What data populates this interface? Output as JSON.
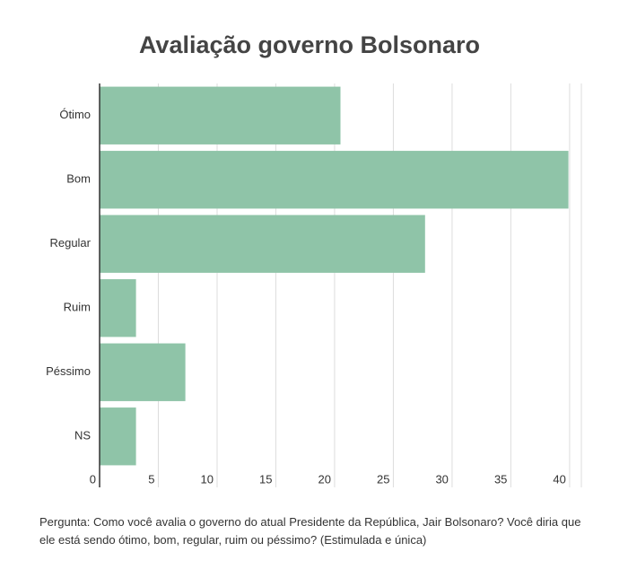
{
  "chart_data": {
    "type": "barh",
    "title": "Avaliação governo Bolsonaro",
    "categories": [
      "Ótimo",
      "Bom",
      "Regular",
      "Ruim",
      "Péssimo",
      "NS"
    ],
    "values": [
      20.5,
      39.9,
      27.7,
      3.1,
      7.3,
      3.1
    ],
    "color": "#8fc4a8",
    "xlim": [
      0,
      41
    ],
    "xticks": [
      0,
      5,
      10,
      15,
      20,
      25,
      30,
      35,
      40
    ],
    "grid": true,
    "note": "Pergunta: Como você avalia o governo do atual Presidente da República, Jair Bolsonaro? Você diria que ele está sendo ótimo, bom, regular, ruim ou péssimo? (Estimulada e única)"
  }
}
